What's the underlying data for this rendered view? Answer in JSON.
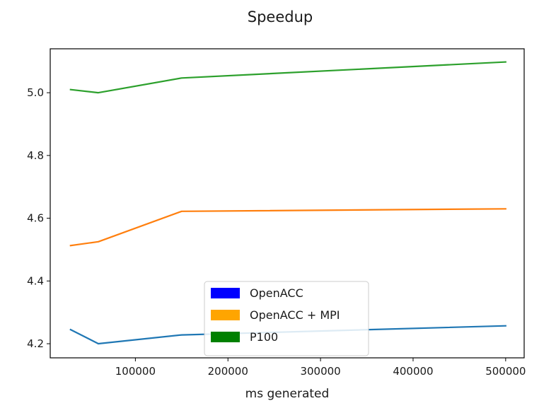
{
  "chart_data": {
    "type": "line",
    "title": "Speedup",
    "xlabel": "ms generated",
    "ylabel": "",
    "xlim": [
      8000,
      520000
    ],
    "ylim": [
      4.155,
      5.14
    ],
    "x_ticks": [
      100000,
      200000,
      300000,
      400000,
      500000
    ],
    "x_tick_labels": [
      "100000",
      "200000",
      "300000",
      "400000",
      "500000"
    ],
    "y_ticks": [
      4.2,
      4.4,
      4.6,
      4.8,
      5.0
    ],
    "y_tick_labels": [
      "4.2",
      "4.4",
      "4.6",
      "4.8",
      "5.0"
    ],
    "grid": false,
    "legend_position": "bottom-center",
    "series": [
      {
        "name": "OpenACC",
        "color": "#1f77b4",
        "legend_color": "#0000ff",
        "x": [
          30000,
          60000,
          150000,
          500000
        ],
        "y": [
          4.245,
          4.2,
          4.228,
          4.257
        ]
      },
      {
        "name": "OpenACC + MPI",
        "color": "#ff7f0e",
        "legend_color": "#ffa500",
        "x": [
          30000,
          60000,
          150000,
          500000
        ],
        "y": [
          4.513,
          4.525,
          4.622,
          4.63
        ]
      },
      {
        "name": "P100",
        "color": "#2ca02c",
        "legend_color": "#008000",
        "x": [
          30000,
          60000,
          150000,
          500000
        ],
        "y": [
          5.01,
          5.0,
          5.047,
          5.098
        ]
      }
    ]
  }
}
